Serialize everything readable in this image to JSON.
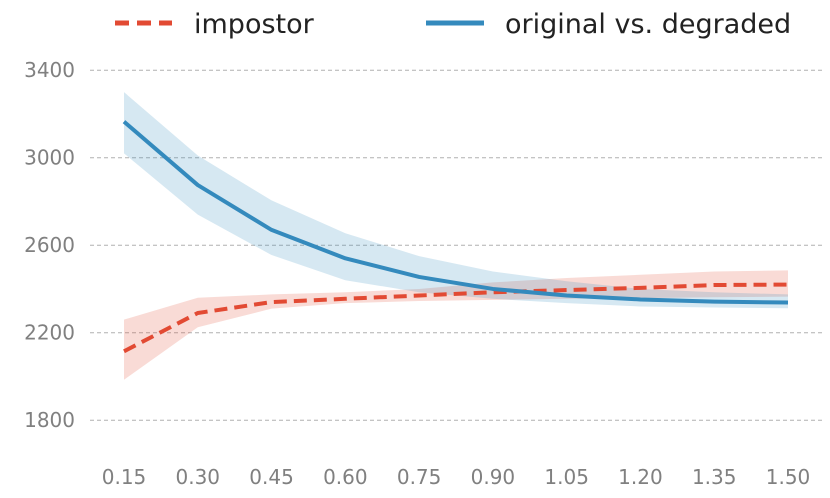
{
  "chart_data": {
    "type": "line",
    "title": "",
    "xlabel": "",
    "ylabel": "",
    "x": [
      "0.15",
      "0.30",
      "0.45",
      "0.60",
      "0.75",
      "0.90",
      "1.05",
      "1.20",
      "1.35",
      "1.50"
    ],
    "ylim": [
      1650,
      3520
    ],
    "yticks": [
      1800,
      2200,
      2600,
      3000,
      3400
    ],
    "grid": "horizontal dashed",
    "legend_position": "top",
    "series": [
      {
        "name": "impostor",
        "style": "dashed",
        "color": "#e24a33",
        "values": [
          2115,
          2290,
          2340,
          2355,
          2370,
          2385,
          2395,
          2405,
          2418,
          2420
        ],
        "lower": [
          1985,
          2225,
          2310,
          2335,
          2345,
          2350,
          2355,
          2358,
          2362,
          2365
        ],
        "upper": [
          2260,
          2360,
          2375,
          2385,
          2400,
          2430,
          2450,
          2465,
          2480,
          2485
        ]
      },
      {
        "name": "original vs. degraded",
        "style": "solid",
        "color": "#348abd",
        "values": [
          3165,
          2875,
          2670,
          2540,
          2455,
          2400,
          2370,
          2352,
          2342,
          2338
        ],
        "lower": [
          3020,
          2740,
          2555,
          2440,
          2385,
          2355,
          2335,
          2320,
          2315,
          2312
        ],
        "upper": [
          3300,
          3010,
          2805,
          2655,
          2550,
          2480,
          2435,
          2400,
          2385,
          2375
        ]
      }
    ]
  }
}
